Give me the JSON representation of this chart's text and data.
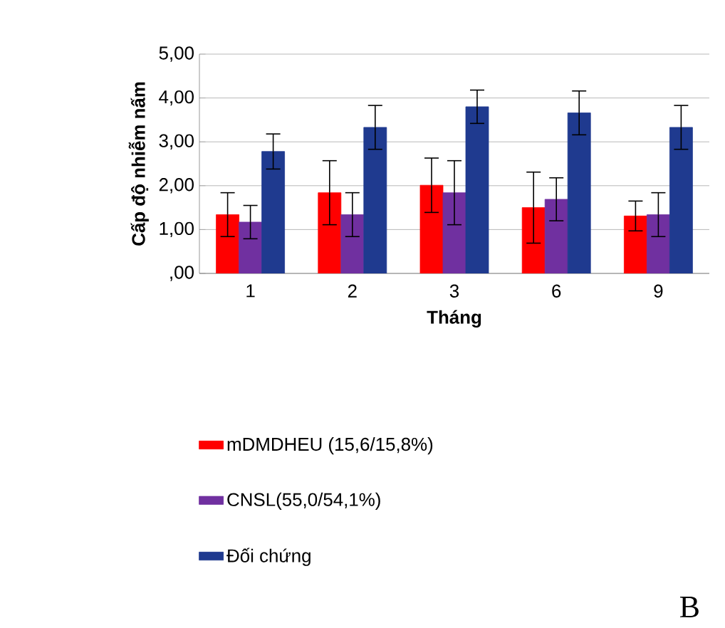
{
  "chart_data": {
    "type": "bar",
    "ylabel": "Cấp độ nhiễm nấm",
    "xlabel": "Tháng",
    "categories": [
      "1",
      "2",
      "3",
      "6",
      "9"
    ],
    "series": [
      {
        "name": "mDMDHEU (15,6/15,8%)",
        "color": "#ff0000",
        "values": [
          1.34,
          1.84,
          2.01,
          1.5,
          1.31
        ],
        "errors": [
          0.5,
          0.73,
          0.62,
          0.81,
          0.34
        ]
      },
      {
        "name": "CNSL(55,0/54,1%)",
        "color": "#7030a0",
        "values": [
          1.17,
          1.34,
          1.84,
          1.69,
          1.34
        ],
        "errors": [
          0.38,
          0.5,
          0.73,
          0.49,
          0.5
        ]
      },
      {
        "name": "Đối chứng",
        "color": "#1f3a8f",
        "values": [
          2.78,
          3.33,
          3.8,
          3.66,
          3.33
        ],
        "errors": [
          0.4,
          0.5,
          0.38,
          0.5,
          0.5
        ]
      }
    ],
    "ylim": [
      0,
      5
    ],
    "yticks": [
      {
        "value": 0,
        "label": ",00"
      },
      {
        "value": 1,
        "label": "1,00"
      },
      {
        "value": 2,
        "label": "2,00"
      },
      {
        "value": 3,
        "label": "3,00"
      },
      {
        "value": 4,
        "label": "4,00"
      },
      {
        "value": 5,
        "label": "5,00"
      }
    ],
    "grid": "y",
    "legend": "bottom",
    "annotations": [
      "B"
    ]
  }
}
